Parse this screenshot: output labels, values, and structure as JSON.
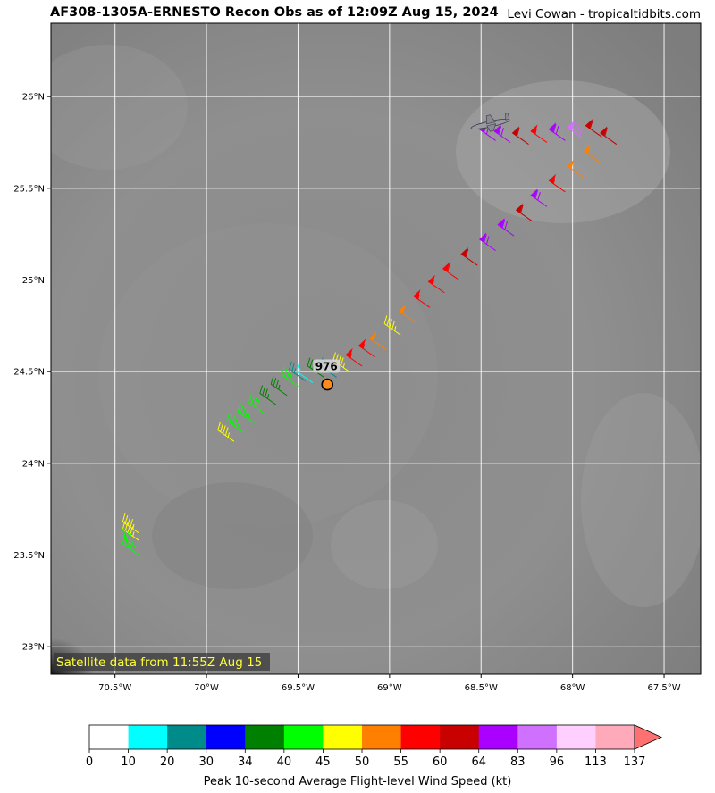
{
  "header": {
    "title": "AF308-1305A-ERNESTO Recon Obs as of 12:09Z Aug 15, 2024",
    "credit": "Levi Cowan - tropicaltidbits.com"
  },
  "map": {
    "satellite_note": "Satellite data from 11:55Z Aug 15",
    "center_pressure_label": "976",
    "lon_range": [
      -70.85,
      -67.3
    ],
    "lat_range": [
      22.85,
      26.4
    ],
    "lon_ticks": [
      {
        "value": -70.5,
        "label": "70.5°W"
      },
      {
        "value": -70.0,
        "label": "70°W"
      },
      {
        "value": -69.5,
        "label": "69.5°W"
      },
      {
        "value": -69.0,
        "label": "69°W"
      },
      {
        "value": -68.5,
        "label": "68.5°W"
      },
      {
        "value": -68.0,
        "label": "68°W"
      },
      {
        "value": -67.5,
        "label": "67.5°W"
      }
    ],
    "lat_ticks": [
      {
        "value": 26.0,
        "label": "26°N"
      },
      {
        "value": 25.5,
        "label": "25.5°N"
      },
      {
        "value": 25.0,
        "label": "25°N"
      },
      {
        "value": 24.5,
        "label": "24.5°N"
      },
      {
        "value": 24.0,
        "label": "24°N"
      },
      {
        "value": 23.5,
        "label": "23.5°N"
      },
      {
        "value": 23.0,
        "label": "23°N"
      }
    ],
    "center": {
      "lon": -69.34,
      "lat": 24.43
    },
    "aircraft": {
      "lon": -68.45,
      "lat": 25.85,
      "icon": "airplane-icon"
    }
  },
  "colorbar": {
    "title": "Peak 10-second Average Flight-level Wind Speed (kt)",
    "ticks": [
      "0",
      "10",
      "20",
      "30",
      "34",
      "40",
      "45",
      "50",
      "55",
      "60",
      "64",
      "83",
      "96",
      "113",
      "137"
    ],
    "colors": [
      "#ffffff",
      "#00ffff",
      "#008b8b",
      "#0000ff",
      "#008000",
      "#00ff00",
      "#ffff00",
      "#ff7f00",
      "#ff0000",
      "#c80000",
      "#aa00ff",
      "#d070ff",
      "#ffd0ff",
      "#ffaabb",
      "#ff7070"
    ]
  },
  "flight_track": [
    {
      "lon": -70.37,
      "lat": 23.62,
      "kt": 47
    },
    {
      "lon": -70.37,
      "lat": 23.58,
      "kt": 47
    },
    {
      "lon": -70.38,
      "lat": 23.54,
      "kt": 42
    },
    {
      "lon": -70.37,
      "lat": 23.5,
      "kt": 42
    },
    {
      "lon": -69.85,
      "lat": 24.12,
      "kt": 47
    },
    {
      "lon": -69.8,
      "lat": 24.17,
      "kt": 43
    },
    {
      "lon": -69.74,
      "lat": 24.22,
      "kt": 43
    },
    {
      "lon": -69.68,
      "lat": 24.27,
      "kt": 42
    },
    {
      "lon": -69.62,
      "lat": 24.32,
      "kt": 37
    },
    {
      "lon": -69.56,
      "lat": 24.37,
      "kt": 37
    },
    {
      "lon": -69.5,
      "lat": 24.42,
      "kt": 42
    },
    {
      "lon": -69.46,
      "lat": 24.45,
      "kt": 25
    },
    {
      "lon": -69.42,
      "lat": 24.44,
      "kt": 15
    },
    {
      "lon": -69.36,
      "lat": 24.47,
      "kt": 36
    },
    {
      "lon": -69.29,
      "lat": 24.47,
      "kt": 22
    },
    {
      "lon": -69.22,
      "lat": 24.5,
      "kt": 46
    },
    {
      "lon": -69.15,
      "lat": 24.53,
      "kt": 57
    },
    {
      "lon": -69.08,
      "lat": 24.58,
      "kt": 57
    },
    {
      "lon": -69.02,
      "lat": 24.62,
      "kt": 52
    },
    {
      "lon": -68.94,
      "lat": 24.7,
      "kt": 47
    },
    {
      "lon": -68.86,
      "lat": 24.77,
      "kt": 52
    },
    {
      "lon": -68.78,
      "lat": 24.85,
      "kt": 57
    },
    {
      "lon": -68.7,
      "lat": 24.93,
      "kt": 57
    },
    {
      "lon": -68.62,
      "lat": 25.0,
      "kt": 58
    },
    {
      "lon": -68.52,
      "lat": 25.08,
      "kt": 62
    },
    {
      "lon": -68.42,
      "lat": 25.16,
      "kt": 70
    },
    {
      "lon": -68.32,
      "lat": 25.24,
      "kt": 70
    },
    {
      "lon": -68.22,
      "lat": 25.32,
      "kt": 62
    },
    {
      "lon": -68.14,
      "lat": 25.4,
      "kt": 70
    },
    {
      "lon": -68.04,
      "lat": 25.48,
      "kt": 57
    },
    {
      "lon": -67.94,
      "lat": 25.56,
      "kt": 52
    },
    {
      "lon": -67.85,
      "lat": 25.64,
      "kt": 52
    },
    {
      "lon": -67.76,
      "lat": 25.74,
      "kt": 62
    },
    {
      "lon": -67.84,
      "lat": 25.78,
      "kt": 62
    },
    {
      "lon": -67.94,
      "lat": 25.77,
      "kt": 90
    },
    {
      "lon": -68.04,
      "lat": 25.76,
      "kt": 70
    },
    {
      "lon": -68.14,
      "lat": 25.75,
      "kt": 57
    },
    {
      "lon": -68.24,
      "lat": 25.74,
      "kt": 62
    },
    {
      "lon": -68.34,
      "lat": 25.75,
      "kt": 70
    },
    {
      "lon": -68.42,
      "lat": 25.76,
      "kt": 70
    }
  ]
}
